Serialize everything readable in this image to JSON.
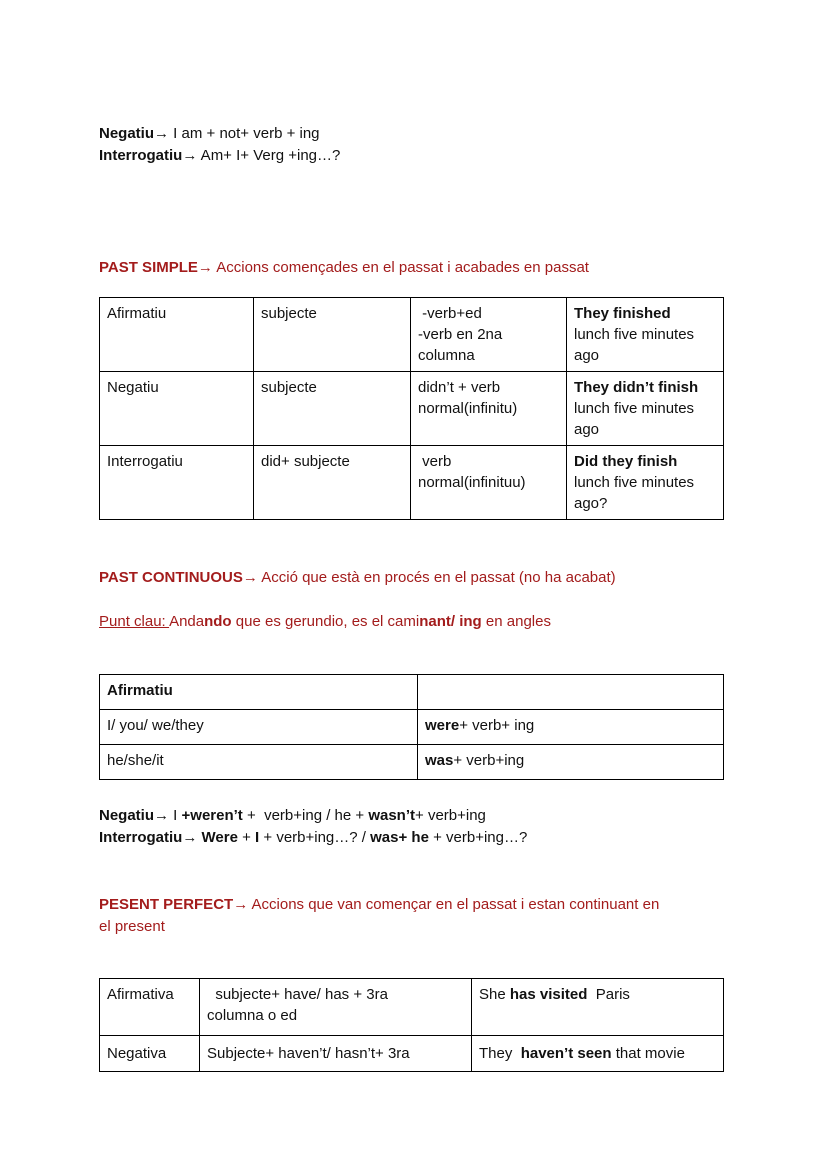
{
  "colors": {
    "accent_red": "#a31c1c",
    "text_color": "#111111",
    "border_color": "#000000",
    "page_bg": "#ffffff"
  },
  "top": {
    "line1": [
      {
        "t": "Negatiu",
        "b": true
      },
      {
        "t": "→ I am + not+ verb + ing"
      }
    ],
    "line2": [
      {
        "t": "Interrogatiu",
        "b": true
      },
      {
        "t": "→ Am+ I+ Verg +ing…?"
      }
    ]
  },
  "sections": {
    "past_simple": {
      "heading": [
        {
          "t": "PAST SIMPLE",
          "b": true
        },
        {
          "t": "→ Accions començades en el passat i acabades en passat"
        }
      ],
      "table": {
        "rows": [
          {
            "cells": [
              [
                {
                  "t": "Afirmatiu"
                }
              ],
              [
                {
                  "t": "subjecte"
                }
              ],
              [
                {
                  "t": " -verb+ed\n-verb en 2na\ncolumna"
                }
              ],
              [
                {
                  "t": "They finished",
                  "b": true
                },
                {
                  "t": "\nlunch five minutes\nago"
                }
              ]
            ]
          },
          {
            "cells": [
              [
                {
                  "t": "Negatiu"
                }
              ],
              [
                {
                  "t": "subjecte"
                }
              ],
              [
                {
                  "t": "didn’t + verb\nnormal(infinitu)"
                }
              ],
              [
                {
                  "t": "They didn’t finish",
                  "b": true
                },
                {
                  "t": "\nlunch five minutes\nago"
                }
              ]
            ]
          },
          {
            "cells": [
              [
                {
                  "t": "Interrogatiu"
                }
              ],
              [
                {
                  "t": "did+ subjecte"
                }
              ],
              [
                {
                  "t": " verb\nnormal(infinituu)"
                }
              ],
              [
                {
                  "t": "Did they finish",
                  "b": true
                },
                {
                  "t": "\nlunch five minutes\nago?"
                }
              ]
            ]
          }
        ]
      }
    },
    "past_continuous": {
      "heading": [
        {
          "t": "PAST CONTINUOUS",
          "b": true
        },
        {
          "t": "→ Acció que està en procés en el passat (no ha acabat)"
        }
      ],
      "punt_clau": [
        {
          "t": "Punt clau: ",
          "u": true
        },
        {
          "t": "Anda"
        },
        {
          "t": "ndo",
          "b": true
        },
        {
          "t": " que es gerundio, es el cami"
        },
        {
          "t": "nant/ ing",
          "b": true
        },
        {
          "t": " en angles"
        }
      ],
      "table": {
        "rows": [
          {
            "cells": [
              [
                {
                  "t": "Afirmatiu",
                  "b": true
                }
              ],
              [
                {
                  "t": ""
                }
              ]
            ]
          },
          {
            "cells": [
              [
                {
                  "t": "I/ you/ we/they"
                }
              ],
              [
                {
                  "t": "were",
                  "b": true
                },
                {
                  "t": "+ verb+ ing"
                }
              ]
            ]
          },
          {
            "cells": [
              [
                {
                  "t": "he/she/it"
                }
              ],
              [
                {
                  "t": "was",
                  "b": true
                },
                {
                  "t": "+ verb+ing"
                }
              ]
            ]
          }
        ]
      },
      "negatiu_line": [
        {
          "t": "Negatiu",
          "b": true
        },
        {
          "t": "→ I "
        },
        {
          "t": "+weren’t",
          "b": true
        },
        {
          "t": " +  verb+ing / he + "
        },
        {
          "t": "wasn’t",
          "b": true
        },
        {
          "t": "+ verb+ing"
        }
      ],
      "interrogatiu_line": [
        {
          "t": "Interrogatiu",
          "b": true
        },
        {
          "t": "→ "
        },
        {
          "t": "Were",
          "b": true
        },
        {
          "t": " + "
        },
        {
          "t": "I",
          "b": true
        },
        {
          "t": " + verb+ing…? / "
        },
        {
          "t": "was+ he",
          "b": true
        },
        {
          "t": " + verb+ing…?"
        }
      ]
    },
    "pesent_perfect": {
      "heading": [
        {
          "t": "PESENT PERFECT",
          "b": true
        },
        {
          "t": "→ Accions que van començar en el passat i estan continuant en\nel present"
        }
      ],
      "table": {
        "rows": [
          {
            "cells": [
              [
                {
                  "t": "Afirmativa"
                }
              ],
              [
                {
                  "t": "  subjecte+ have/ has + 3ra\ncolumna o ed"
                }
              ],
              [
                {
                  "t": "She "
                },
                {
                  "t": "has visited",
                  "b": true
                },
                {
                  "t": "  Paris"
                }
              ]
            ]
          },
          {
            "cells": [
              [
                {
                  "t": "Negativa"
                }
              ],
              [
                {
                  "t": "Subjecte+ haven’t/ hasn’t+ 3ra"
                }
              ],
              [
                {
                  "t": "They  "
                },
                {
                  "t": "haven’t seen",
                  "b": true
                },
                {
                  "t": " that movie"
                }
              ]
            ]
          }
        ]
      }
    }
  }
}
